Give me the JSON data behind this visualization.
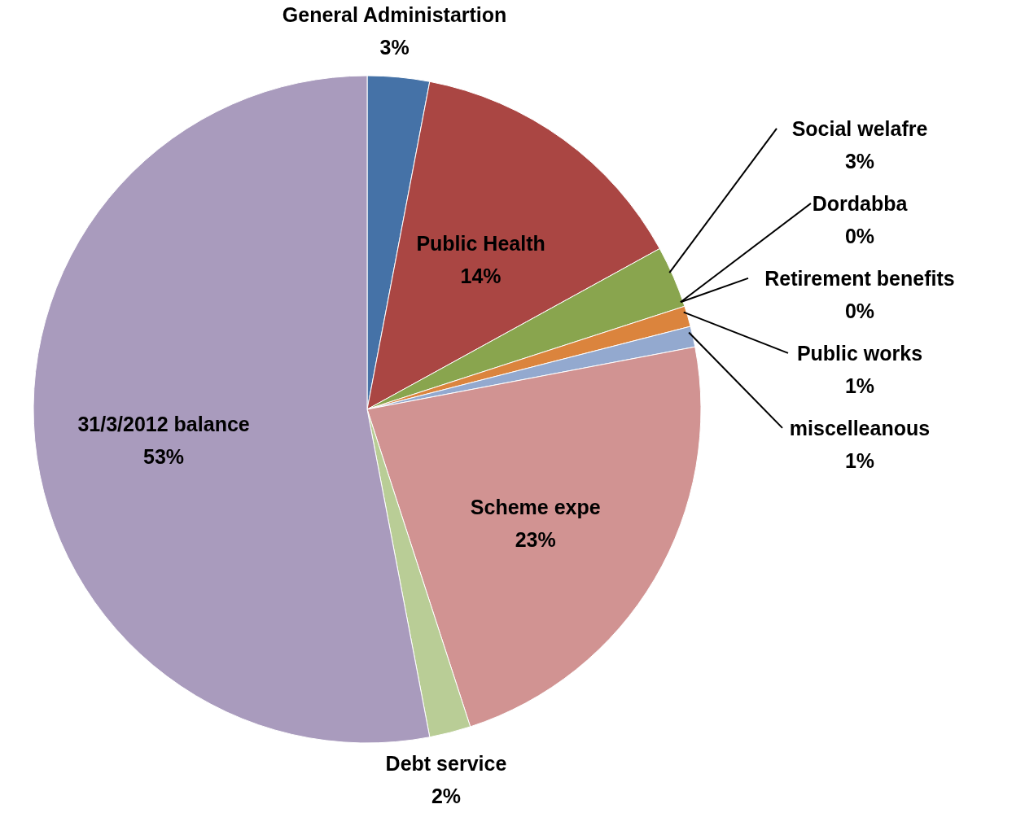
{
  "chart_data": {
    "type": "pie",
    "categories": [
      "General Administartion",
      "Public Health",
      "Social welafre",
      "Dordabba",
      "Retirement benefits",
      "Public works",
      "miscelleanous",
      "Scheme expe",
      "Debt service",
      "31/3/2012 balance"
    ],
    "values": [
      3,
      14,
      3,
      0,
      0,
      1,
      1,
      23,
      2,
      53
    ],
    "value_labels": [
      "3%",
      "14%",
      "3%",
      "0%",
      "0%",
      "1%",
      "1%",
      "23%",
      "2%",
      "53%"
    ],
    "colors": [
      "#4572a7",
      "#aa4643",
      "#89a54e",
      "#3d96ae",
      "#71588f",
      "#db843d",
      "#93a9cf",
      "#d19392",
      "#b9cd96",
      "#a99bbd"
    ]
  }
}
